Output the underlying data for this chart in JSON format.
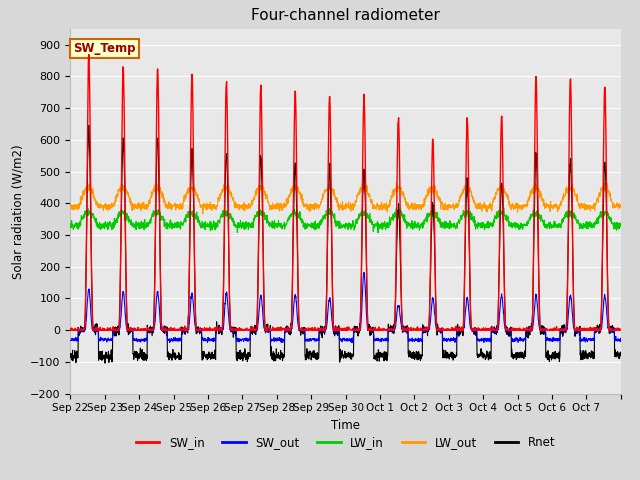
{
  "title": "Four-channel radiometer",
  "ylabel": "Solar radiation (W/m2)",
  "xlabel": "Time",
  "ylim": [
    -200,
    950
  ],
  "yticks": [
    -200,
    -100,
    0,
    100,
    200,
    300,
    400,
    500,
    600,
    700,
    800,
    900
  ],
  "fig_bg_color": "#d8d8d8",
  "plot_bg_color": "#e8e8e8",
  "annotation_text": "SW_Temp",
  "annotation_bg": "#ffffcc",
  "annotation_border": "#cc6600",
  "legend_entries": [
    "SW_in",
    "SW_out",
    "LW_in",
    "LW_out",
    "Rnet"
  ],
  "legend_colors": [
    "#ff0000",
    "#0000ff",
    "#00cc00",
    "#ff9900",
    "#000000"
  ],
  "n_days": 16,
  "sw_in_peaks": [
    870,
    830,
    825,
    810,
    780,
    770,
    750,
    735,
    735,
    670,
    600,
    670,
    680,
    800,
    795,
    770
  ],
  "sw_out_peaks": [
    130,
    120,
    120,
    115,
    115,
    110,
    110,
    100,
    180,
    80,
    100,
    100,
    110,
    110,
    110,
    110
  ],
  "lw_in_base": 330,
  "lw_out_base": 390,
  "rnet_peaks": [
    625,
    600,
    610,
    555,
    555,
    540,
    515,
    510,
    510,
    390,
    400,
    470,
    465,
    555,
    535,
    530
  ],
  "rnet_night": -80,
  "sw_night": -30,
  "tick_labels": [
    "Sep 22",
    "Sep 23",
    "Sep 24",
    "Sep 25",
    "Sep 26",
    "Sep 27",
    "Sep 28",
    "Sep 29",
    "Sep 30",
    "Oct 1",
    "Oct 2",
    "Oct 3",
    "Oct 4",
    "Oct 5",
    "Oct 6",
    "Oct 7"
  ]
}
